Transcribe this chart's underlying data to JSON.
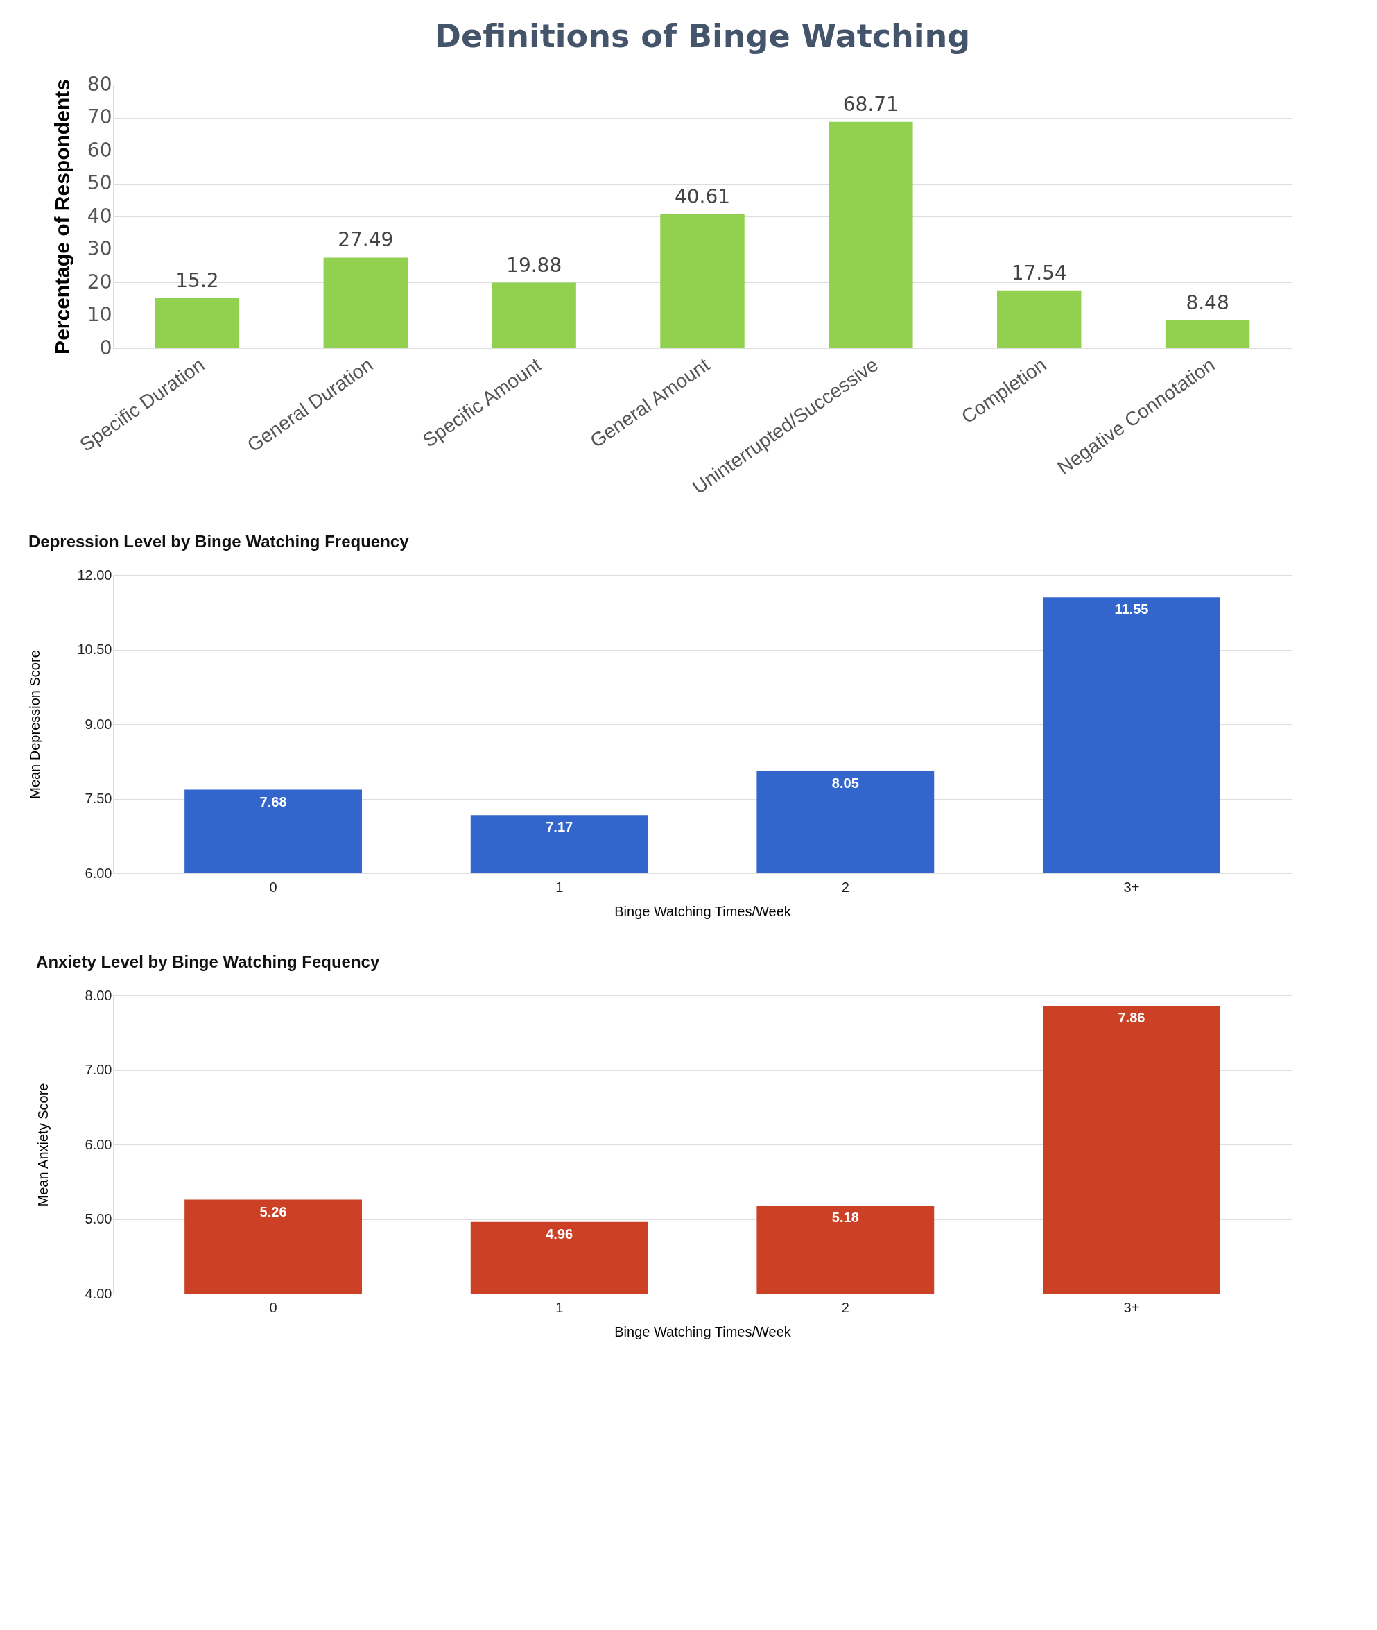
{
  "chart_data": [
    {
      "type": "bar",
      "title": "Definitions of Binge Watching",
      "ylabel": "Percentage of Respondents",
      "categories": [
        "Specific Duration",
        "General Duration",
        "Specific Amount",
        "General Amount",
        "Uninterrupted/Successive",
        "Completion",
        "Negative Connotation"
      ],
      "values": [
        15.2,
        27.49,
        19.88,
        40.61,
        68.71,
        17.54,
        8.48
      ],
      "color": "#92d050",
      "ylim": [
        0,
        80
      ],
      "yticks": [
        0,
        10,
        20,
        30,
        40,
        50,
        60,
        70,
        80
      ],
      "grid": "y",
      "data_labels": true
    },
    {
      "type": "bar",
      "title": "Depression Level by Binge Watching Frequency",
      "ylabel": "Mean Depression Score",
      "xlabel": "Binge Watching Times/Week",
      "categories": [
        "0",
        "1",
        "2",
        "3+"
      ],
      "values": [
        7.68,
        7.17,
        8.05,
        11.55
      ],
      "color": "#3366cc",
      "ylim": [
        6,
        12
      ],
      "yticks": [
        {
          "value": 6,
          "label": "6.00"
        },
        {
          "value": 7.5,
          "label": "7.50"
        },
        {
          "value": 9,
          "label": "9.00"
        },
        {
          "value": 10.5,
          "label": "10.50"
        },
        {
          "value": 12,
          "label": "12.00"
        }
      ],
      "grid": "y",
      "data_labels": true
    },
    {
      "type": "bar",
      "title": "Anxiety Level by Binge Watching Fequency",
      "ylabel": "Mean Anxiety Score",
      "xlabel": "Binge Watching Times/Week",
      "categories": [
        "0",
        "1",
        "2",
        "3+"
      ],
      "values": [
        5.26,
        4.96,
        5.18,
        7.86
      ],
      "color": "#cc4125",
      "ylim": [
        4,
        8
      ],
      "yticks": [
        {
          "value": 4,
          "label": "4.00"
        },
        {
          "value": 5,
          "label": "5.00"
        },
        {
          "value": 6,
          "label": "6.00"
        },
        {
          "value": 7,
          "label": "7.00"
        },
        {
          "value": 8,
          "label": "8.00"
        }
      ],
      "grid": "y",
      "data_labels": true
    }
  ]
}
